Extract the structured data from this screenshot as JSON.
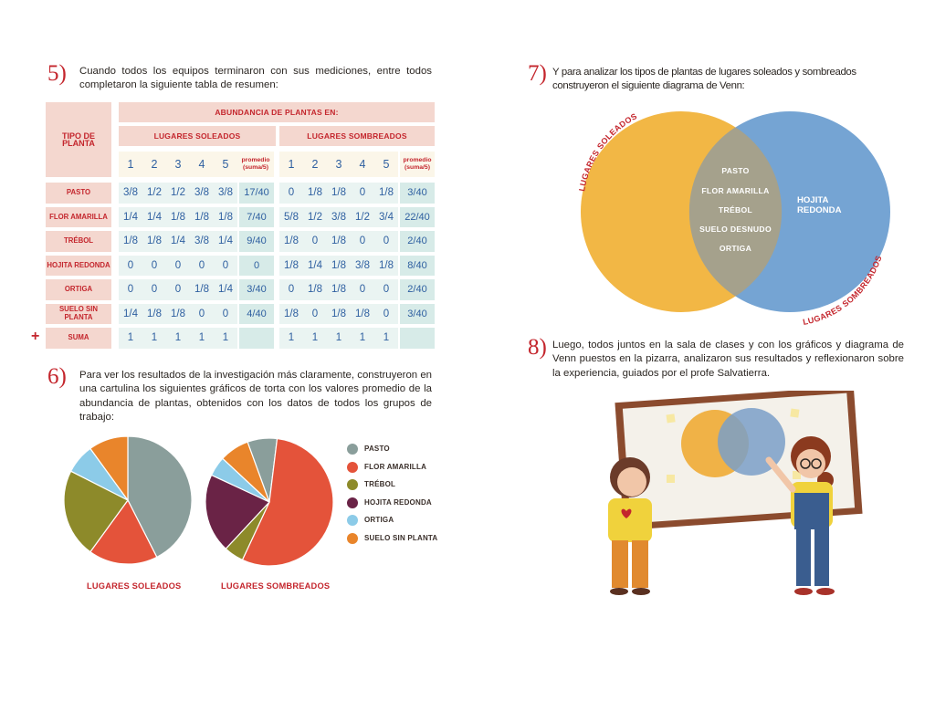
{
  "colors": {
    "red": "#c4262d",
    "pasto": "#8a9e9b",
    "flor_amarilla": "#e4533a",
    "trebol": "#8d8a2a",
    "hojita_redonda": "#6a2346",
    "ortiga": "#8ccbe8",
    "suelo_sin_planta": "#e9852b",
    "venn_left": "#f2b745",
    "venn_right": "#6e9fd1"
  },
  "step5": {
    "number": "5)",
    "text": "Cuando todos los equipos terminaron con sus mediciones, entre todos completaron la siguiente tabla de resumen:"
  },
  "table": {
    "tipo_header": "TIPO DE PLANTA",
    "abundancia_header": "ABUNDANCIA DE PLANTAS EN:",
    "soleados_header": "LUGARES SOLEADOS",
    "sombreados_header": "LUGARES SOMBREADOS",
    "columns": [
      "1",
      "2",
      "3",
      "4",
      "5"
    ],
    "promedio_label": "promedio (suma/5)",
    "rows": [
      {
        "label": "PASTO",
        "sol": [
          "3/8",
          "1/2",
          "1/2",
          "3/8",
          "3/8"
        ],
        "sol_avg": "17/40",
        "som": [
          "0",
          "1/8",
          "1/8",
          "0",
          "1/8"
        ],
        "som_avg": "3/40"
      },
      {
        "label": "FLOR AMARILLA",
        "sol": [
          "1/4",
          "1/4",
          "1/8",
          "1/8",
          "1/8"
        ],
        "sol_avg": "7/40",
        "som": [
          "5/8",
          "1/2",
          "3/8",
          "1/2",
          "3/4"
        ],
        "som_avg": "22/40"
      },
      {
        "label": "TRÉBOL",
        "sol": [
          "1/8",
          "1/8",
          "1/4",
          "3/8",
          "1/4"
        ],
        "sol_avg": "9/40",
        "som": [
          "1/8",
          "0",
          "1/8",
          "0",
          "0"
        ],
        "som_avg": "2/40"
      },
      {
        "label": "HOJITA REDONDA",
        "sol": [
          "0",
          "0",
          "0",
          "0",
          "0"
        ],
        "sol_avg": "0",
        "som": [
          "1/8",
          "1/4",
          "1/8",
          "3/8",
          "1/8"
        ],
        "som_avg": "8/40"
      },
      {
        "label": "ORTIGA",
        "sol": [
          "0",
          "0",
          "0",
          "1/8",
          "1/4"
        ],
        "sol_avg": "3/40",
        "som": [
          "0",
          "1/8",
          "1/8",
          "0",
          "0"
        ],
        "som_avg": "2/40"
      },
      {
        "label": "SUELO SIN PLANTA",
        "sol": [
          "1/4",
          "1/8",
          "1/8",
          "0",
          "0"
        ],
        "sol_avg": "4/40",
        "som": [
          "1/8",
          "0",
          "1/8",
          "1/8",
          "0"
        ],
        "som_avg": "3/40"
      },
      {
        "label": "SUMA",
        "sol": [
          "1",
          "1",
          "1",
          "1",
          "1"
        ],
        "sol_avg": "",
        "som": [
          "1",
          "1",
          "1",
          "1",
          "1"
        ],
        "som_avg": ""
      }
    ],
    "plus_sign": "+"
  },
  "step6": {
    "number": "6)",
    "text": "Para ver los resultados de la investigación más claramente, construyeron en una cartulina los siguientes gráficos de torta con los valores promedio de la abundancia de plantas, obtenidos con los datos de todos los grupos de trabajo:"
  },
  "chart_data": [
    {
      "type": "pie",
      "title": "LUGARES SOLEADOS",
      "categories": [
        "PASTO",
        "FLOR AMARILLA",
        "TRÉBOL",
        "HOJITA REDONDA",
        "ORTIGA",
        "SUELO SIN PLANTA"
      ],
      "values": [
        17,
        7,
        9,
        0,
        3,
        4
      ],
      "legend": "right"
    },
    {
      "type": "pie",
      "title": "LUGARES SOMBREADOS",
      "categories": [
        "PASTO",
        "FLOR AMARILLA",
        "TRÉBOL",
        "HOJITA REDONDA",
        "ORTIGA",
        "SUELO SIN PLANTA"
      ],
      "values": [
        3,
        22,
        2,
        8,
        2,
        3
      ],
      "legend": "right"
    }
  ],
  "legend_items": [
    "PASTO",
    "FLOR AMARILLA",
    "TRÉBOL",
    "HOJITA REDONDA",
    "ORTIGA",
    "SUELO SIN PLANTA"
  ],
  "step7": {
    "number": "7)",
    "text": "Y para analizar los tipos de plantas de lugares soleados y sombreados construyeron el siguiente diagrama de Venn:"
  },
  "venn": {
    "left_label": "LUGARES SOLEADOS",
    "right_label": "LUGARES SOMBREADOS",
    "intersection": [
      "PASTO",
      "FLOR AMARILLA",
      "TRÉBOL",
      "SUELO DESNUDO",
      "ORTIGA"
    ],
    "right_only": "HOJITA REDONDA"
  },
  "step8": {
    "number": "8)",
    "text": "Luego, todos juntos en la sala de clases y con los gráficos y diagrama de Venn puestos en la pizarra, analizaron sus resultados y reflexionaron sobre la experiencia, guiados por el profe Salvatierra."
  }
}
